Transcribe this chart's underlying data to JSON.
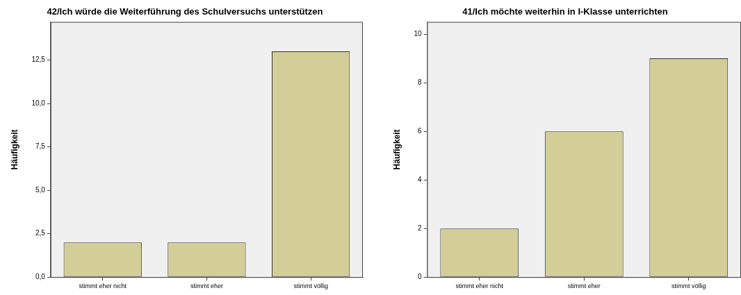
{
  "chart_data": [
    {
      "type": "bar",
      "title": "42/Ich würde die Weiterführung des Schulversuchs unterstützen",
      "ylabel": "Häufigkeit",
      "categories": [
        "stimmt eher nicht",
        "stimmt eher",
        "stimmt völlig"
      ],
      "values": [
        2,
        2,
        13
      ],
      "color": "#d3ce97",
      "ylim": [
        0,
        14.7
      ],
      "yticks": [
        {
          "value": 0,
          "label": "0,0"
        },
        {
          "value": 2.5,
          "label": "2,5"
        },
        {
          "value": 5,
          "label": "5,0"
        },
        {
          "value": 7.5,
          "label": "7,5"
        },
        {
          "value": 10,
          "label": "10,0"
        },
        {
          "value": 12.5,
          "label": "12,5"
        }
      ],
      "grid": false,
      "legend": false
    },
    {
      "type": "bar",
      "title": "41/Ich möchte weiterhin in I-Klasse unterrichten",
      "ylabel": "Häufigkeit",
      "categories": [
        "stimmt eher nicht",
        "stimmt eher",
        "stimmt völlig"
      ],
      "values": [
        2,
        6,
        9
      ],
      "color": "#d3ce97",
      "ylim": [
        0,
        10.5
      ],
      "yticks": [
        0,
        2,
        4,
        6,
        8,
        10
      ],
      "grid": false,
      "legend": false
    }
  ]
}
